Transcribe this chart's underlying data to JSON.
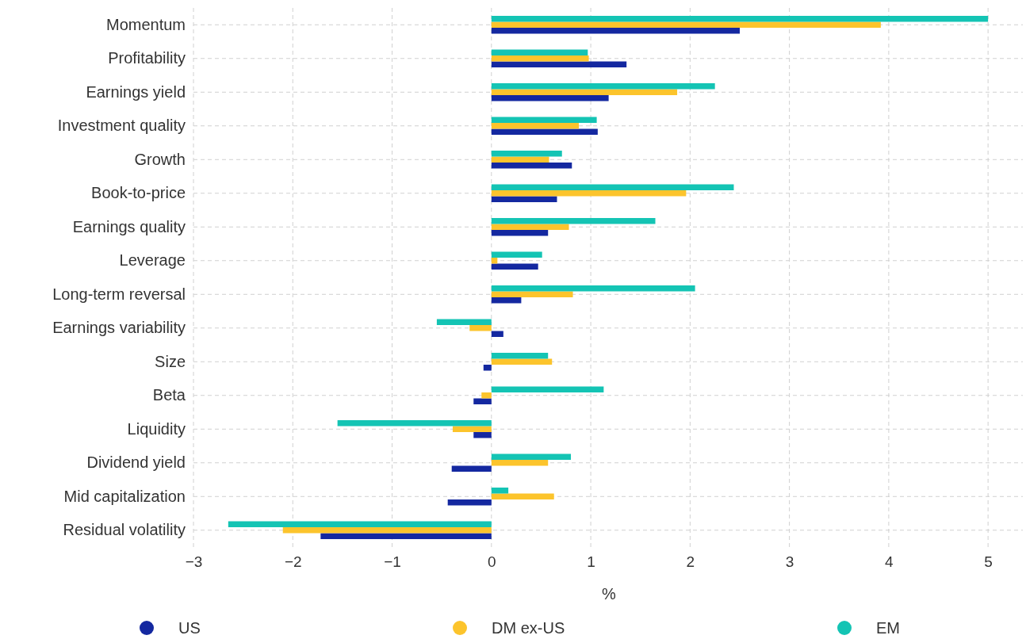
{
  "chart_data": {
    "type": "bar",
    "orientation": "horizontal",
    "xlabel": "%",
    "categories": [
      "Momentum",
      "Profitability",
      "Earnings yield",
      "Investment quality",
      "Growth",
      "Book-to-price",
      "Earnings quality",
      "Leverage",
      "Long-term reversal",
      "Earnings variability",
      "Size",
      "Beta",
      "Liquidity",
      "Dividend yield",
      "Mid capitalization",
      "Residual volatility"
    ],
    "series": [
      {
        "name": "US",
        "color": "#1428a0",
        "values": [
          2.5,
          1.36,
          1.18,
          1.07,
          0.81,
          0.66,
          0.57,
          0.47,
          0.3,
          0.12,
          -0.08,
          -0.18,
          -0.18,
          -0.4,
          -0.44,
          -1.72
        ]
      },
      {
        "name": "DM ex-US",
        "color": "#fcc42c",
        "values": [
          3.92,
          0.98,
          1.87,
          0.88,
          0.58,
          1.96,
          0.78,
          0.06,
          0.82,
          -0.22,
          0.61,
          -0.1,
          -0.39,
          0.57,
          0.63,
          -2.1
        ]
      },
      {
        "name": "EM",
        "color": "#14c4b4",
        "values": [
          5.0,
          0.97,
          2.25,
          1.06,
          0.71,
          2.44,
          1.65,
          0.51,
          2.05,
          -0.55,
          0.57,
          1.13,
          -1.55,
          0.8,
          0.17,
          -2.65
        ]
      }
    ],
    "xlim": [
      -3,
      5.35
    ],
    "xticks": [
      {
        "value": -3,
        "label": "−3"
      },
      {
        "value": -2,
        "label": "−2"
      },
      {
        "value": -1,
        "label": "−1"
      },
      0,
      1,
      2,
      3,
      4,
      5
    ],
    "grid": true,
    "legend": "bottom"
  }
}
